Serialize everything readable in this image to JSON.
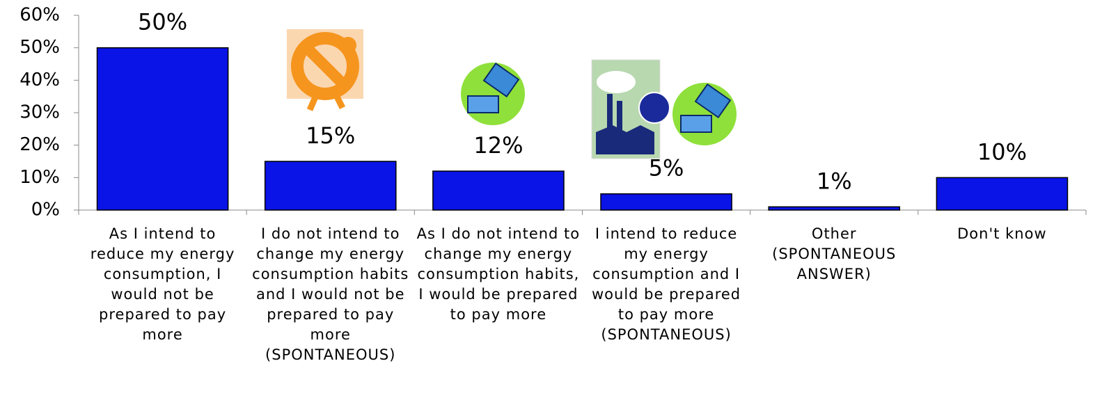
{
  "chart_data": {
    "type": "bar",
    "categories": [
      "As I intend to reduce my energy consumption, I would not be prepared to pay more",
      "I do not intend to change my energy consumption habits and I would not be prepared to pay more (SPONTANEOUS)",
      "As I do not intend to change my energy consumption habits, I would be prepared to pay more",
      "I intend to reduce my energy consumption and I would be prepared to pay more (SPONTANEOUS)",
      "Other (SPONTANEOUS ANSWER)",
      "Don't know"
    ],
    "values": [
      50,
      15,
      12,
      5,
      1,
      10
    ],
    "value_labels": [
      "50%",
      "15%",
      "12%",
      "5%",
      "1%",
      "10%"
    ],
    "color": "#0a14e6",
    "ylim": [
      0,
      60
    ],
    "yticks": [
      {
        "value": 0,
        "label": "0%"
      },
      {
        "value": 10,
        "label": "10%"
      },
      {
        "value": 20,
        "label": "20%"
      },
      {
        "value": 30,
        "label": "30%"
      },
      {
        "value": 40,
        "label": "40%"
      },
      {
        "value": 50,
        "label": "50%"
      },
      {
        "value": 60,
        "label": "60%"
      }
    ]
  }
}
